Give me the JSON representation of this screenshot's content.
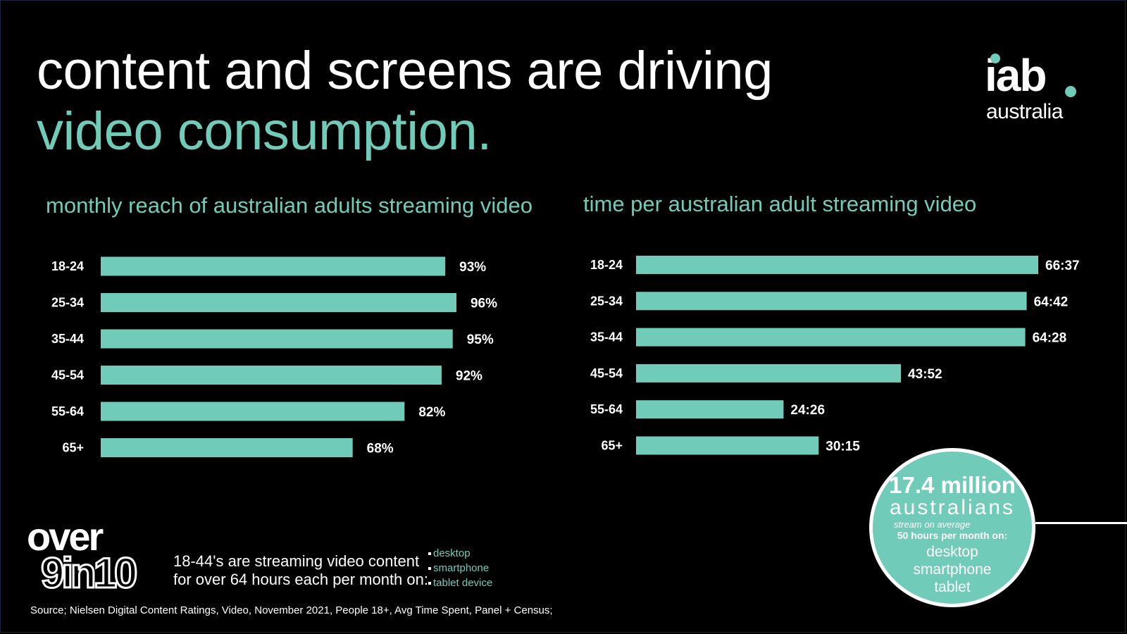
{
  "headline": {
    "line1": "content and screens are driving",
    "line2": "video consumption."
  },
  "logo": {
    "primary": "iab",
    "secondary": "australia"
  },
  "colors": {
    "accent": "#71cbb9",
    "background": "#000000",
    "text": "#ffffff"
  },
  "chart_data": [
    {
      "type": "bar",
      "orientation": "horizontal",
      "title": "monthly reach of australian adults streaming video",
      "categories": [
        "18-24",
        "25-34",
        "35-44",
        "45-54",
        "55-64",
        "65+"
      ],
      "values": [
        93,
        96,
        95,
        92,
        82,
        68
      ],
      "value_labels": [
        "93%",
        "96%",
        "95%",
        "92%",
        "82%",
        "68%"
      ],
      "unit": "%",
      "xlim": [
        0,
        100
      ],
      "grid": false,
      "legend": "none",
      "color": "#71cbb9"
    },
    {
      "type": "bar",
      "orientation": "horizontal",
      "title": "time per australian adult streaming video",
      "categories": [
        "18-24",
        "25-34",
        "35-44",
        "45-54",
        "55-64",
        "65+"
      ],
      "values": [
        66.617,
        64.7,
        64.467,
        43.867,
        24.433,
        30.25
      ],
      "value_labels": [
        "66:37",
        "64:42",
        "64:28",
        "43:52",
        "24:26",
        "30:15"
      ],
      "unit": "hours:minutes",
      "xlim": [
        0,
        70
      ],
      "grid": false,
      "legend": "none",
      "color": "#71cbb9"
    }
  ],
  "callout": {
    "over": "over",
    "figure": "9in10",
    "line1": "18-44's are streaming video content",
    "line2": "for over 64 hours each per month on:",
    "devices": [
      "desktop",
      "smartphone",
      "tablet device"
    ]
  },
  "circle": {
    "count": "17.4 million",
    "label": "australians",
    "sub": "stream on average",
    "hours": "50 hours per month on:",
    "devices": [
      "desktop",
      "smartphone",
      "tablet"
    ]
  },
  "source": "Source; Nielsen Digital Content Ratings, Video, November 2021, People 18+, Avg Time Spent, Panel + Census;"
}
